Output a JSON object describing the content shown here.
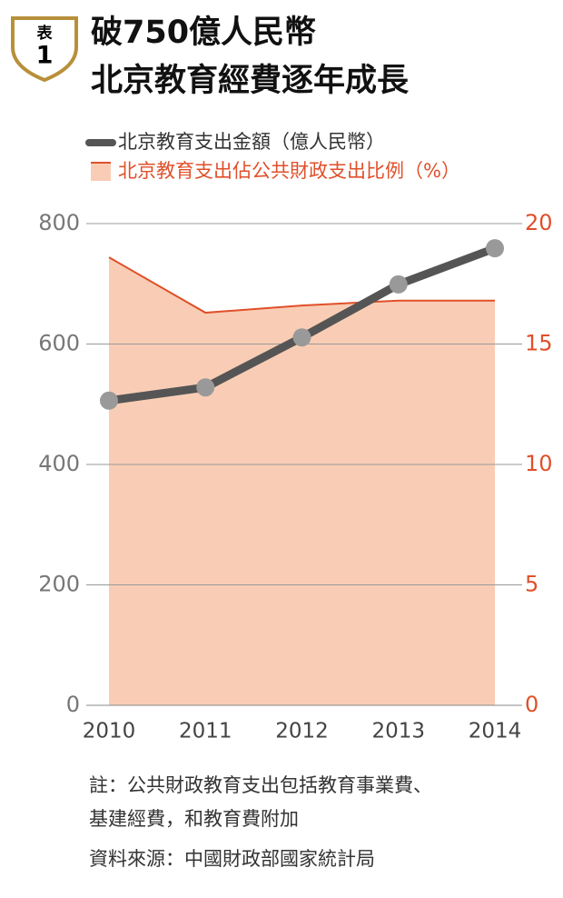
{
  "chart_data": {
    "type": "line",
    "badge_label": "表",
    "badge_number": 1,
    "title": [
      "破750億人民幣",
      "北京教育經費逐年成長"
    ],
    "categories": [
      "2010",
      "2011",
      "2012",
      "2013",
      "2014"
    ],
    "series": [
      {
        "name": "北京教育支出金額（億人民幣）",
        "type": "line",
        "color": "#555555",
        "marker_color": "#999999",
        "values": [
          506,
          528,
          611,
          699,
          759
        ]
      },
      {
        "name": "北京教育支出佔公共財政支出比例（%）",
        "type": "area",
        "axis": "y2",
        "color": "#e0502a",
        "fill": "#f9cdb5",
        "values": [
          18.6,
          16.3,
          16.6,
          16.8,
          16.8
        ]
      }
    ],
    "ylim": [
      0,
      800
    ],
    "yticks": [
      0,
      200,
      400,
      600,
      800
    ],
    "y2lim": [
      0,
      20
    ],
    "y2ticks": [
      0,
      5,
      10,
      15,
      20
    ],
    "grid": true,
    "notes": [
      "註：公共財政教育支出包括教育事業費、",
      "基建經費，和教育費附加"
    ],
    "source": "資料來源：中國財政部國家統計局"
  }
}
